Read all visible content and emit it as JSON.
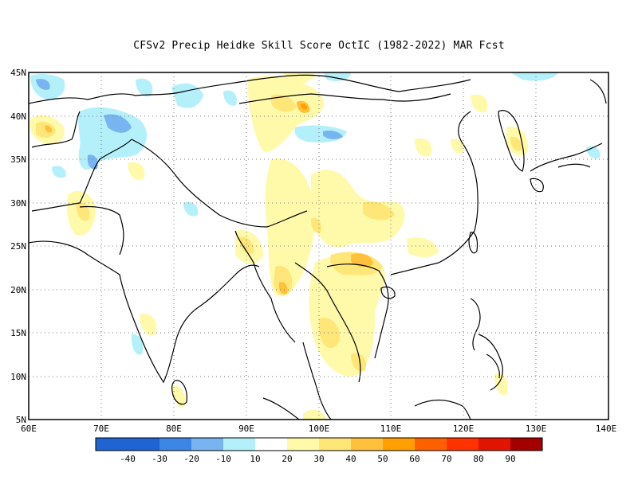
{
  "title": "CFSv2 Precip Heidke Skill Score OctIC (1982-2022) MAR Fcst",
  "map": {
    "lon_range": [
      60,
      140
    ],
    "lat_range": [
      5,
      45
    ],
    "lat_ticks": [
      "5N",
      "10N",
      "15N",
      "20N",
      "25N",
      "30N",
      "35N",
      "40N",
      "45N"
    ],
    "lon_ticks": [
      "60E",
      "70E",
      "80E",
      "90E",
      "100E",
      "110E",
      "120E",
      "130E",
      "140E"
    ],
    "grid": "dotted"
  },
  "colorbar": {
    "labels": [
      "-40",
      "-30",
      "-20",
      "-10",
      "10",
      "20",
      "30",
      "40",
      "50",
      "60",
      "70",
      "80",
      "90"
    ],
    "colors": [
      "#1e64d2",
      "#3c87e6",
      "#78b4f0",
      "#b4f0fa",
      "#ffffff",
      "#fffaaa",
      "#ffe678",
      "#ffc03c",
      "#ffa000",
      "#ff6000",
      "#ff3200",
      "#e11400",
      "#a50000"
    ]
  },
  "colors": {
    "positive_light": "#fffaaa",
    "positive_mid": "#ffe678",
    "positive_strong": "#ffc03c",
    "positive_max": "#ffa000",
    "negative_light": "#b4f0fa",
    "negative_mid": "#78b4f0",
    "negative_strong": "#3c87e6"
  }
}
